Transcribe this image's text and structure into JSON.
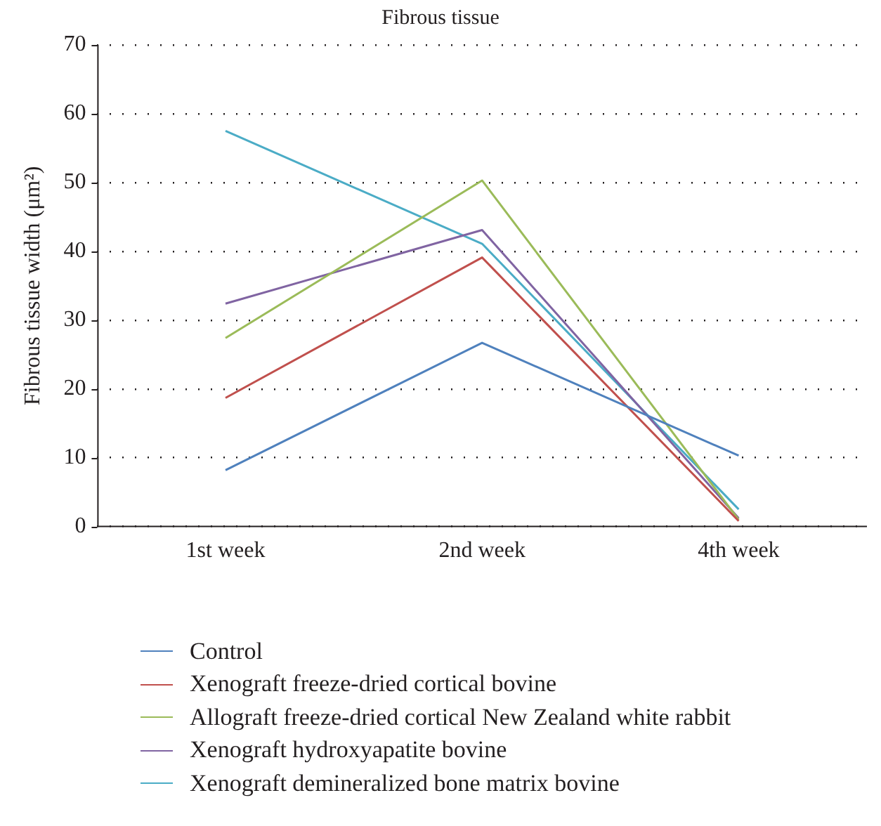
{
  "chart_data": {
    "type": "line",
    "title": "Fibrous tissue",
    "ylabel": "Fibrous tissue width (μm²)",
    "categories": [
      "1st week",
      "2nd week",
      "4th week"
    ],
    "series": [
      {
        "name": "Control",
        "color": "#4f81bd",
        "values": [
          8.2,
          26.7,
          10.3
        ]
      },
      {
        "name": "Xenograft freeze-dried cortical bovine",
        "color": "#c0504d",
        "values": [
          18.7,
          39.1,
          0.8
        ]
      },
      {
        "name": "Allograft freeze-dried cortical New Zealand white rabbit",
        "color": "#9bbb59",
        "values": [
          27.4,
          50.3,
          1.0
        ]
      },
      {
        "name": "Xenograft hydroxyapatite bovine",
        "color": "#8064a2",
        "values": [
          32.4,
          43.1,
          1.2
        ]
      },
      {
        "name": "Xenograft demineralized bone matrix bovine",
        "color": "#4bacc6",
        "values": [
          57.5,
          41.1,
          2.5
        ]
      }
    ],
    "ylim": [
      0,
      70
    ],
    "yticks": [
      0,
      10,
      20,
      30,
      40,
      50,
      60,
      70
    ],
    "grid": "y",
    "legend": "bottom",
    "marker": "none",
    "line_style": "solid"
  }
}
